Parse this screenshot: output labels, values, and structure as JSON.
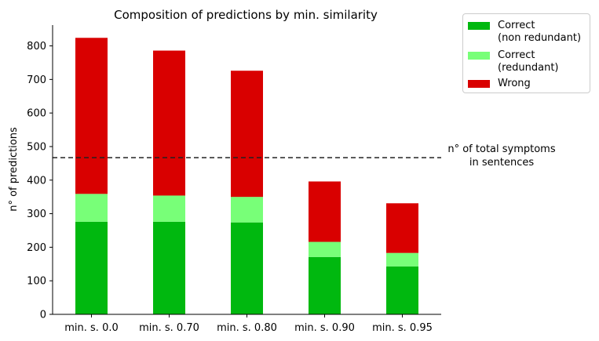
{
  "chart_data": {
    "type": "bar",
    "stacked": true,
    "title": "Composition of predictions by min. similarity",
    "xlabel": "",
    "ylabel": "n° of predictions",
    "categories": [
      "min. s. 0.0",
      "min. s. 0.70",
      "min. s. 0.80",
      "min. s. 0.90",
      "min. s. 0.95"
    ],
    "series": [
      {
        "name": "Correct\n(non redundant)",
        "color": "#00b80f",
        "values": [
          276,
          276,
          274,
          171,
          143
        ]
      },
      {
        "name": "Correct\n(redundant)",
        "color": "#78ff78",
        "values": [
          83,
          78,
          76,
          45,
          40
        ]
      },
      {
        "name": "Wrong",
        "color": "#d90000",
        "values": [
          465,
          432,
          376,
          180,
          148
        ]
      }
    ],
    "ylim": [
      0,
      862
    ],
    "yticks": [
      0,
      100,
      200,
      300,
      400,
      500,
      600,
      700,
      800
    ],
    "reference_line": {
      "value": 467,
      "style": "dashed",
      "label": "n° of total symptoms\nin sentences"
    },
    "legend": {
      "position": "outside-top-right"
    },
    "grid": false
  }
}
